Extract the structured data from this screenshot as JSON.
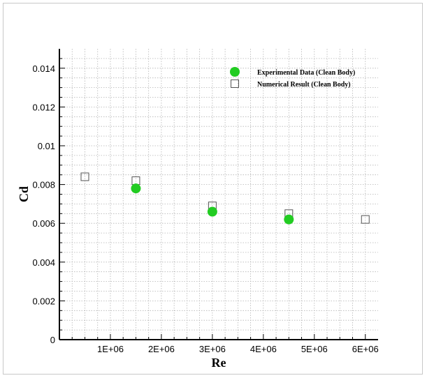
{
  "chart_data": {
    "type": "scatter",
    "title": "",
    "xlabel": "Re",
    "ylabel": "Cd",
    "xlim": [
      0,
      6250000
    ],
    "ylim": [
      0,
      0.015
    ],
    "grid": true,
    "legend_position": "top-right",
    "x_ticks": [
      {
        "value": 1000000,
        "label": "1E+06"
      },
      {
        "value": 2000000,
        "label": "2E+06"
      },
      {
        "value": 3000000,
        "label": "3E+06"
      },
      {
        "value": 4000000,
        "label": "4E+06"
      },
      {
        "value": 5000000,
        "label": "5E+06"
      },
      {
        "value": 6000000,
        "label": "6E+06"
      }
    ],
    "y_ticks": [
      {
        "value": 0,
        "label": "0"
      },
      {
        "value": 0.002,
        "label": "0.002"
      },
      {
        "value": 0.004,
        "label": "0.004"
      },
      {
        "value": 0.006,
        "label": "0.006"
      },
      {
        "value": 0.008,
        "label": "0.008"
      },
      {
        "value": 0.01,
        "label": "0.01"
      },
      {
        "value": 0.012,
        "label": "0.012"
      },
      {
        "value": 0.014,
        "label": "0.014"
      }
    ],
    "series": [
      {
        "name": "Experimental Data (Clean Body)",
        "marker": "filled-circle",
        "color": "#22cc22",
        "points": [
          {
            "x": 1500000,
            "y": 0.0078
          },
          {
            "x": 3000000,
            "y": 0.0066
          },
          {
            "x": 4500000,
            "y": 0.0062
          }
        ]
      },
      {
        "name": "Numerical Result (Clean Body)",
        "marker": "open-square",
        "color": "#555555",
        "points": [
          {
            "x": 500000,
            "y": 0.0084
          },
          {
            "x": 1500000,
            "y": 0.0082
          },
          {
            "x": 3000000,
            "y": 0.0069
          },
          {
            "x": 4500000,
            "y": 0.0065
          },
          {
            "x": 6000000,
            "y": 0.0062
          }
        ]
      }
    ]
  }
}
